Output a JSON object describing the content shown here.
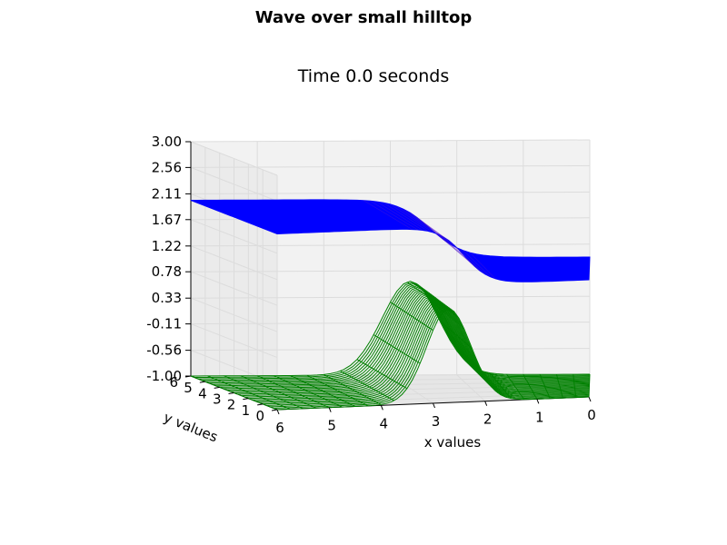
{
  "figure_title": "Wave over small hilltop",
  "axes_title": "Time 0.0 seconds",
  "chart_data": {
    "type": "surface-3d",
    "title": "Wave over small hilltop",
    "subtitle": "Time 0.0 seconds",
    "xlabel": "x values",
    "ylabel": "y values",
    "zlabel": "",
    "xlim": [
      0,
      6
    ],
    "ylim": [
      0,
      6
    ],
    "zlim": [
      -1.0,
      3.0
    ],
    "x_ticks": [
      "0",
      "1",
      "2",
      "3",
      "4",
      "5",
      "6"
    ],
    "y_ticks": [
      "0",
      "1",
      "2",
      "3",
      "4",
      "5",
      "6"
    ],
    "z_ticks": [
      "-1.00",
      "-0.56",
      "-0.11",
      "0.33",
      "0.78",
      "1.22",
      "1.67",
      "2.11",
      "2.56",
      "3.00"
    ],
    "grid": true,
    "series": [
      {
        "style": "solid surface",
        "color": "#0000ff",
        "description_formula": "z = 1.0 + 1.0 / (1 + exp(-(x - 2.4) * 4))",
        "x": [
          0,
          0.5,
          1,
          1.5,
          2,
          2.5,
          3,
          3.5,
          4,
          4.5,
          5,
          5.5,
          6
        ],
        "z_profile": [
          1.0,
          1.0,
          1.0,
          1.0,
          1.17,
          1.6,
          1.9,
          1.99,
          2.0,
          2.0,
          2.0,
          2.0,
          2.0
        ]
      },
      {
        "style": "wireframe",
        "color": "#008000",
        "description_formula": "z = -1.0 + 1.6 * exp(-((x - 2.7) / 0.6)^2)",
        "x": [
          0,
          0.5,
          1,
          1.5,
          2,
          2.5,
          3,
          3.5,
          4,
          4.5,
          5,
          5.5,
          6
        ],
        "z_profile": [
          -1.0,
          -1.0,
          -1.0,
          -1.0,
          -0.8,
          0.4,
          0.5,
          -0.6,
          -1.0,
          -1.0,
          -1.0,
          -1.0,
          -1.0
        ]
      }
    ]
  }
}
